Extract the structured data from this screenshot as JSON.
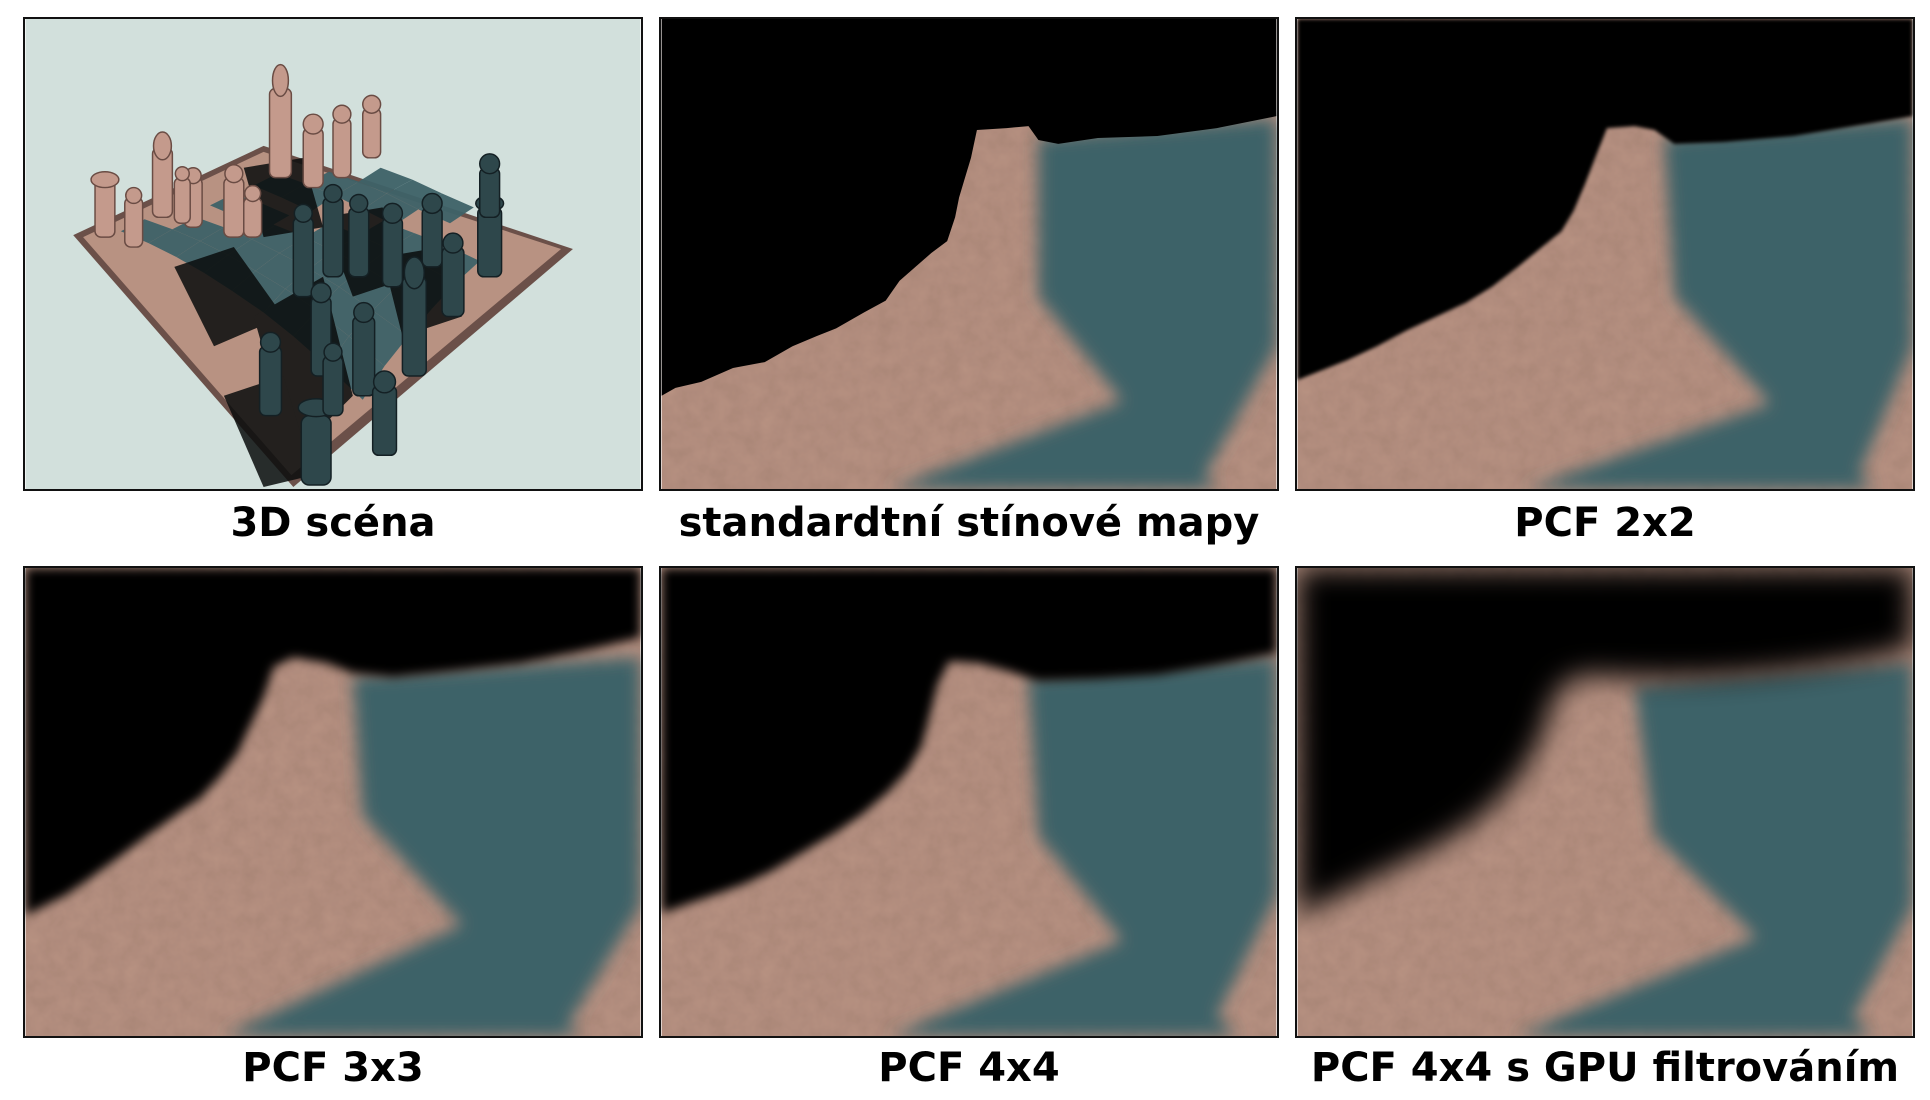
{
  "panels": [
    {
      "id": "scene",
      "caption": "3D scéna"
    },
    {
      "id": "standard",
      "caption": "standardtní stínové mapy"
    },
    {
      "id": "pcf2",
      "caption": "PCF 2x2"
    },
    {
      "id": "pcf3",
      "caption": "PCF 3x3"
    },
    {
      "id": "pcf4",
      "caption": "PCF 4x4"
    },
    {
      "id": "pcf4gpu",
      "caption": "PCF 4x4 s GPU filtrováním"
    }
  ],
  "colors": {
    "background_scene": "#d2e0dc",
    "tile_light": "#b89282",
    "tile_dark": "#3e6268",
    "shadow": "#000000",
    "piece": "#c49a8c"
  },
  "icons": [
    "chessboard-scene-image",
    "shadow-closeup-image"
  ]
}
